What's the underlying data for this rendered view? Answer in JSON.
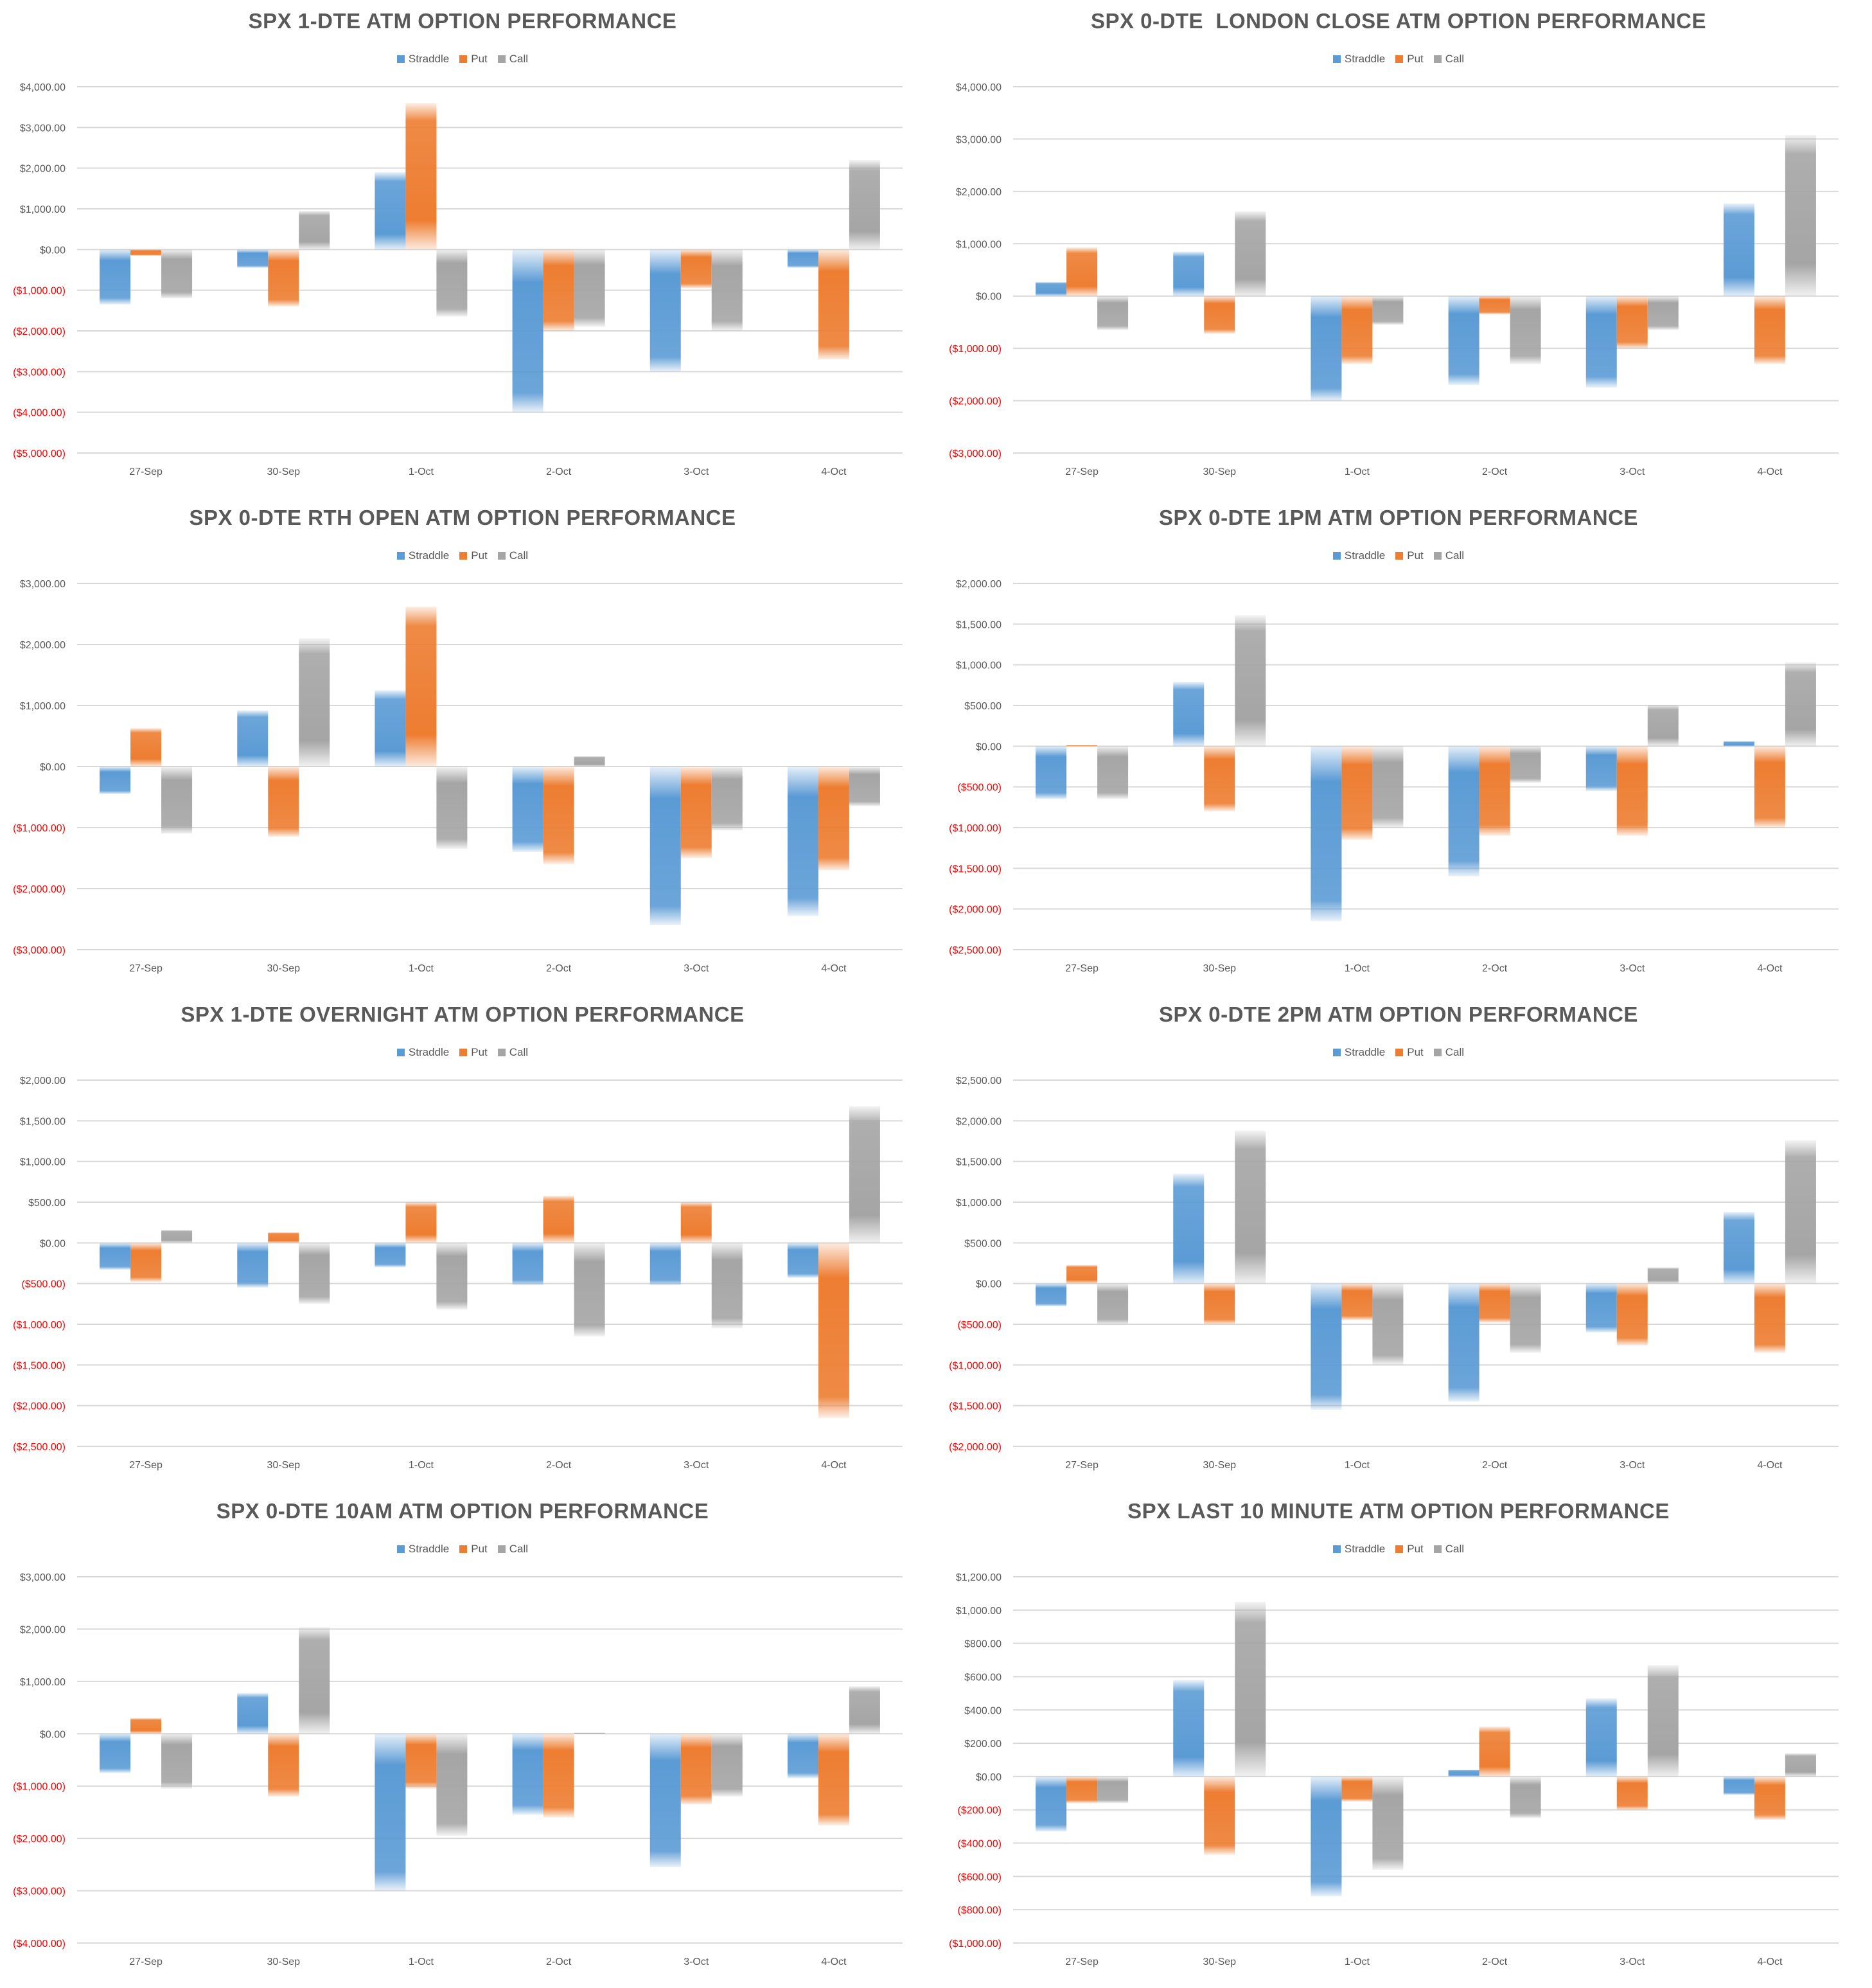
{
  "colors": {
    "Straddle": "#5b9bd5",
    "Put": "#ed7d31",
    "Call": "#a5a5a5",
    "negative_label": "#ff0000",
    "positive_label": "#595959",
    "gridline": "#d9d9d9"
  },
  "chart_data": [
    {
      "type": "bar",
      "title": "SPX 1-DTE ATM OPTION PERFORMANCE",
      "categories": [
        "27-Sep",
        "30-Sep",
        "1-Oct",
        "2-Oct",
        "3-Oct",
        "4-Oct"
      ],
      "series": [
        {
          "name": "Straddle",
          "values": [
            -1350,
            -450,
            1900,
            -4000,
            -3000,
            -450
          ]
        },
        {
          "name": "Put",
          "values": [
            -150,
            -1400,
            3600,
            -2000,
            -950,
            -2700
          ]
        },
        {
          "name": "Call",
          "values": [
            -1200,
            950,
            -1650,
            -1900,
            -2000,
            2200
          ]
        }
      ],
      "ylim": [
        -5000,
        4000
      ],
      "yticks": [
        "$4,000.00",
        "$3,000.00",
        "$2,000.00",
        "$1,000.00",
        "$0.00",
        "($1,000.00)",
        "($2,000.00)",
        "($3,000.00)",
        "($4,000.00)",
        "($5,000.00)"
      ],
      "legend": "top-center",
      "grid": true
    },
    {
      "type": "bar",
      "title": "SPX 0-DTE  LONDON CLOSE ATM OPTION PERFORMANCE",
      "categories": [
        "27-Sep",
        "30-Sep",
        "1-Oct",
        "2-Oct",
        "3-Oct",
        "4-Oct"
      ],
      "series": [
        {
          "name": "Straddle",
          "values": [
            270,
            850,
            -2000,
            -1700,
            -1750,
            1770
          ]
        },
        {
          "name": "Put",
          "values": [
            930,
            -720,
            -1300,
            -350,
            -1000,
            -1300
          ]
        },
        {
          "name": "Call",
          "values": [
            -650,
            1620,
            -550,
            -1300,
            -650,
            3080
          ]
        }
      ],
      "ylim": [
        -3000,
        4000
      ],
      "yticks": [
        "$4,000.00",
        "$3,000.00",
        "$2,000.00",
        "$1,000.00",
        "$0.00",
        "($1,000.00)",
        "($2,000.00)",
        "($3,000.00)"
      ],
      "legend": "top-center",
      "grid": true
    },
    {
      "type": "bar",
      "title": "SPX 0-DTE RTH OPEN ATM OPTION PERFORMANCE",
      "categories": [
        "27-Sep",
        "30-Sep",
        "1-Oct",
        "2-Oct",
        "3-Oct",
        "4-Oct"
      ],
      "series": [
        {
          "name": "Straddle",
          "values": [
            -450,
            920,
            1250,
            -1400,
            -2600,
            -2450
          ]
        },
        {
          "name": "Put",
          "values": [
            630,
            -1150,
            2620,
            -1600,
            -1500,
            -1700
          ]
        },
        {
          "name": "Call",
          "values": [
            -1100,
            2100,
            -1350,
            170,
            -1050,
            -650
          ]
        }
      ],
      "ylim": [
        -3000,
        3000
      ],
      "yticks": [
        "$3,000.00",
        "$2,000.00",
        "$1,000.00",
        "$0.00",
        "($1,000.00)",
        "($2,000.00)",
        "($3,000.00)"
      ],
      "legend": "top-center",
      "grid": true
    },
    {
      "type": "bar",
      "title": "SPX 0-DTE 1PM ATM OPTION PERFORMANCE",
      "categories": [
        "27-Sep",
        "30-Sep",
        "1-Oct",
        "2-Oct",
        "3-Oct",
        "4-Oct"
      ],
      "series": [
        {
          "name": "Straddle",
          "values": [
            -650,
            790,
            -2150,
            -1600,
            -550,
            60
          ]
        },
        {
          "name": "Put",
          "values": [
            10,
            -800,
            -1150,
            -1100,
            -1100,
            -1000
          ]
        },
        {
          "name": "Call",
          "values": [
            -650,
            1610,
            -1000,
            -450,
            510,
            1030
          ]
        }
      ],
      "ylim": [
        -2500,
        2000
      ],
      "yticks": [
        "$2,000.00",
        "$1,500.00",
        "$1,000.00",
        "$500.00",
        "$0.00",
        "($500.00)",
        "($1,000.00)",
        "($1,500.00)",
        "($2,000.00)",
        "($2,500.00)"
      ],
      "legend": "top-center",
      "grid": true
    },
    {
      "type": "bar",
      "title": "SPX 1-DTE OVERNIGHT ATM OPTION PERFORMANCE",
      "categories": [
        "27-Sep",
        "30-Sep",
        "1-Oct",
        "2-Oct",
        "3-Oct",
        "4-Oct"
      ],
      "series": [
        {
          "name": "Straddle",
          "values": [
            -330,
            -550,
            -300,
            -520,
            -520,
            -430
          ]
        },
        {
          "name": "Put",
          "values": [
            -480,
            130,
            500,
            580,
            500,
            -2150
          ]
        },
        {
          "name": "Call",
          "values": [
            160,
            -750,
            -820,
            -1150,
            -1050,
            1680
          ]
        }
      ],
      "ylim": [
        -2500,
        2000
      ],
      "yticks": [
        "$2,000.00",
        "$1,500.00",
        "$1,000.00",
        "$500.00",
        "$0.00",
        "($500.00)",
        "($1,000.00)",
        "($1,500.00)",
        "($2,000.00)",
        "($2,500.00)"
      ],
      "legend": "top-center",
      "grid": true
    },
    {
      "type": "bar",
      "title": "SPX 0-DTE 2PM ATM OPTION PERFORMANCE",
      "categories": [
        "27-Sep",
        "30-Sep",
        "1-Oct",
        "2-Oct",
        "3-Oct",
        "4-Oct"
      ],
      "series": [
        {
          "name": "Straddle",
          "values": [
            -280,
            1350,
            -1550,
            -1450,
            -600,
            880
          ]
        },
        {
          "name": "Put",
          "values": [
            230,
            -500,
            -450,
            -480,
            -760,
            -850
          ]
        },
        {
          "name": "Call",
          "values": [
            -500,
            1880,
            -1000,
            -850,
            200,
            1760
          ]
        }
      ],
      "ylim": [
        -2000,
        2500
      ],
      "yticks": [
        "$2,500.00",
        "$2,000.00",
        "$1,500.00",
        "$1,000.00",
        "$500.00",
        "$0.00",
        "($500.00)",
        "($1,000.00)",
        "($1,500.00)",
        "($2,000.00)"
      ],
      "legend": "top-center",
      "grid": true
    },
    {
      "type": "bar",
      "title": "SPX 0-DTE 10AM ATM OPTION PERFORMANCE",
      "categories": [
        "27-Sep",
        "30-Sep",
        "1-Oct",
        "2-Oct",
        "3-Oct",
        "4-Oct"
      ],
      "series": [
        {
          "name": "Straddle",
          "values": [
            -750,
            780,
            -3000,
            -1550,
            -2550,
            -850
          ]
        },
        {
          "name": "Put",
          "values": [
            300,
            -1200,
            -1050,
            -1600,
            -1350,
            -1750
          ]
        },
        {
          "name": "Call",
          "values": [
            -1050,
            2040,
            -1950,
            20,
            -1200,
            910
          ]
        }
      ],
      "ylim": [
        -4000,
        3000
      ],
      "yticks": [
        "$3,000.00",
        "$2,000.00",
        "$1,000.00",
        "$0.00",
        "($1,000.00)",
        "($2,000.00)",
        "($3,000.00)",
        "($4,000.00)"
      ],
      "legend": "top-center",
      "grid": true
    },
    {
      "type": "bar",
      "title": "SPX LAST 10 MINUTE ATM OPTION PERFORMANCE",
      "categories": [
        "27-Sep",
        "30-Sep",
        "1-Oct",
        "2-Oct",
        "3-Oct",
        "4-Oct"
      ],
      "series": [
        {
          "name": "Straddle",
          "values": [
            -330,
            580,
            -720,
            40,
            470,
            -110
          ]
        },
        {
          "name": "Put",
          "values": [
            -160,
            -470,
            -150,
            300,
            -200,
            -260
          ]
        },
        {
          "name": "Call",
          "values": [
            -160,
            1050,
            -560,
            -250,
            670,
            140
          ]
        }
      ],
      "ylim": [
        -1000,
        1200
      ],
      "yticks": [
        "$1,200.00",
        "$1,000.00",
        "$800.00",
        "$600.00",
        "$400.00",
        "$200.00",
        "$0.00",
        "($200.00)",
        "($400.00)",
        "($600.00)",
        "($800.00)",
        "($1,000.00)"
      ],
      "legend": "top-center",
      "grid": true
    }
  ]
}
